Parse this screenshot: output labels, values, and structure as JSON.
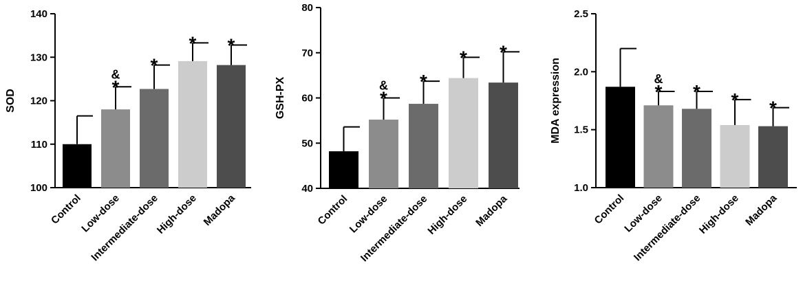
{
  "chart_data": [
    {
      "type": "bar",
      "categories": [
        "Control",
        "Low-dose",
        "Intermediate-dose",
        "High-dose",
        "Madopa"
      ],
      "values": [
        110.0,
        118.0,
        122.7,
        129.1,
        128.2
      ],
      "errors": [
        6.5,
        5.2,
        5.5,
        4.2,
        4.6
      ],
      "annotations": [
        [
          "",
          ""
        ],
        [
          "&",
          "*"
        ],
        [
          "*"
        ],
        [
          "*"
        ],
        [
          "*"
        ]
      ],
      "colors": [
        "#000000",
        "#8c8c8c",
        "#6b6b6b",
        "#cccccc",
        "#4d4d4d"
      ],
      "title": "",
      "xlabel": "",
      "ylabel": "SOD",
      "ylim": [
        100,
        140
      ],
      "yticks": [
        "100",
        "110",
        "120",
        "130",
        "140"
      ]
    },
    {
      "type": "bar",
      "categories": [
        "Control",
        "Low-dose",
        "Intermediate-dose",
        "High-dose",
        "Madopa"
      ],
      "values": [
        48.2,
        55.2,
        58.7,
        64.4,
        63.4
      ],
      "errors": [
        5.4,
        4.8,
        5.0,
        4.6,
        6.8
      ],
      "annotations": [
        [
          "",
          ""
        ],
        [
          "&",
          "*"
        ],
        [
          "*"
        ],
        [
          "*"
        ],
        [
          "*"
        ]
      ],
      "colors": [
        "#000000",
        "#8c8c8c",
        "#6b6b6b",
        "#cccccc",
        "#4d4d4d"
      ],
      "title": "",
      "xlabel": "",
      "ylabel": "GSH-PX",
      "ylim": [
        40,
        80
      ],
      "yticks": [
        "40",
        "50",
        "60",
        "70",
        "80"
      ]
    },
    {
      "type": "bar",
      "categories": [
        "Control",
        "Low-dose",
        "Intermediate-dose",
        "High-dose",
        "Madopa"
      ],
      "values": [
        1.87,
        1.71,
        1.68,
        1.54,
        1.53
      ],
      "errors": [
        0.33,
        0.12,
        0.15,
        0.22,
        0.16
      ],
      "annotations": [
        [
          "",
          ""
        ],
        [
          "&",
          "*"
        ],
        [
          "*"
        ],
        [
          "*"
        ],
        [
          "*"
        ]
      ],
      "colors": [
        "#000000",
        "#8c8c8c",
        "#6b6b6b",
        "#cccccc",
        "#4d4d4d"
      ],
      "title": "",
      "xlabel": "",
      "ylabel": "MDA expression",
      "ylim": [
        1.0,
        2.5
      ],
      "yticks": [
        "1.0",
        "1.5",
        "2.0",
        "2.5"
      ]
    }
  ]
}
